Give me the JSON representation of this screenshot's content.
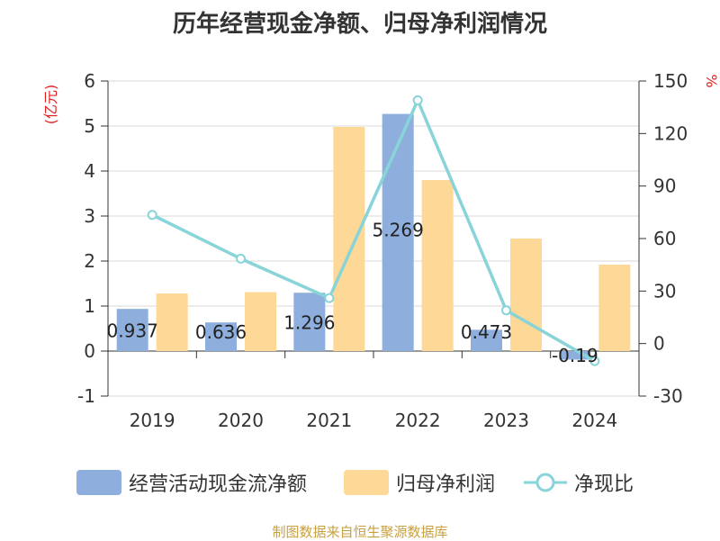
{
  "title": "历年经营现金净额、归母净利润情况",
  "source": "制图数据来自恒生聚源数据库",
  "legend": [
    {
      "label": "经营活动现金流净额",
      "type": "bar",
      "color": "#8eafdd"
    },
    {
      "label": "归母净利润",
      "type": "bar",
      "color": "#fdd897"
    },
    {
      "label": "净现比",
      "type": "line",
      "color": "#88d4d8"
    }
  ],
  "chart_data": {
    "type": "bar",
    "categories": [
      "2019",
      "2020",
      "2021",
      "2022",
      "2023",
      "2024"
    ],
    "y_left": {
      "label": "(亿元)",
      "min": -1,
      "max": 6,
      "ticks": [
        "6",
        "5",
        "4",
        "3",
        "2",
        "1",
        "0",
        "-1"
      ]
    },
    "y_right": {
      "label": "%",
      "min": -30,
      "max": 150,
      "ticks": [
        "150",
        "120",
        "90",
        "60",
        "30",
        "0",
        "-30"
      ]
    },
    "series": [
      {
        "name": "经营活动现金流净额",
        "axis": "left",
        "type": "bar",
        "color": "#8eafdd",
        "values": [
          0.937,
          0.636,
          1.296,
          5.269,
          0.473,
          -0.19
        ],
        "labels": [
          "0.937",
          "0.636",
          "1.296",
          "5.269",
          "0.473",
          "-0.19"
        ]
      },
      {
        "name": "归母净利润",
        "axis": "left",
        "type": "bar",
        "color": "#fdd897",
        "values": [
          1.28,
          1.31,
          4.98,
          3.8,
          2.5,
          1.92
        ]
      },
      {
        "name": "净现比",
        "axis": "right",
        "type": "line",
        "color": "#88d4d8",
        "values": [
          73.5,
          48.5,
          26,
          139,
          19,
          -10
        ]
      }
    ],
    "grid": true
  }
}
